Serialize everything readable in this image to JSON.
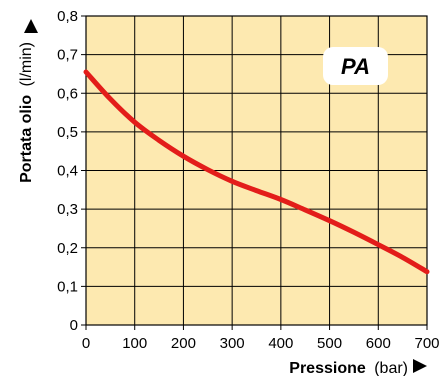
{
  "chart_data": {
    "type": "line",
    "series": [
      {
        "x": [
          0,
          50,
          100,
          150,
          200,
          250,
          300,
          350,
          400,
          450,
          500,
          550,
          600,
          650,
          700
        ],
        "y": [
          0.655,
          0.585,
          0.525,
          0.478,
          0.437,
          0.402,
          0.372,
          0.348,
          0.325,
          0.298,
          0.27,
          0.24,
          0.208,
          0.175,
          0.138
        ]
      }
    ],
    "xlim": [
      0,
      700
    ],
    "ylim": [
      0,
      0.8
    ],
    "x_ticks": [
      "0",
      "100",
      "200",
      "300",
      "400",
      "500",
      "600",
      "700"
    ],
    "y_ticks": [
      "0",
      "0,1",
      "0,2",
      "0,3",
      "0,4",
      "0,5",
      "0,6",
      "0,7",
      "0,8"
    ],
    "xlabel_main": "Pressione",
    "xlabel_unit": "(bar)",
    "ylabel_main": "Portata olio",
    "ylabel_unit": "(l/min)",
    "badge": "PA",
    "grid": true,
    "colors": {
      "plot_background": "#fde9b0",
      "grid": "#000000",
      "line": "#e31d1a",
      "badge_background": "#ffffff"
    }
  }
}
